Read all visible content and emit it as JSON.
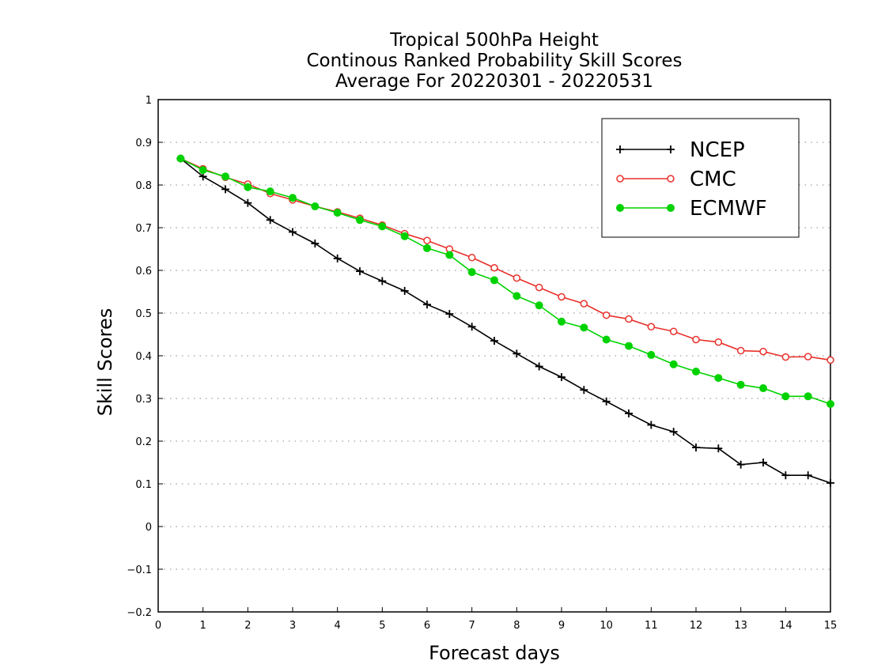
{
  "chart_data": {
    "type": "line",
    "title": "Tropical 500hPa Height",
    "subtitle": [
      "Continous Ranked Probability Skill Scores",
      "Average For 20220301 - 20220531"
    ],
    "xlabel": "Forecast days",
    "ylabel": "Skill Scores",
    "xlim": [
      0,
      15
    ],
    "ylim": [
      -0.2,
      1
    ],
    "xticks": [
      "0",
      "1",
      "2",
      "3",
      "4",
      "5",
      "6",
      "7",
      "8",
      "9",
      "10",
      "11",
      "12",
      "13",
      "14",
      "15"
    ],
    "yticks": [
      "-0.2",
      "-0.1",
      "0",
      "0.1",
      "0.2",
      "0.3",
      "0.4",
      "0.5",
      "0.6",
      "0.7",
      "0.8",
      "0.9",
      "1"
    ],
    "grid": "dotted-horizontal",
    "legend_position": "top-right",
    "x": [
      0.5,
      1,
      1.5,
      2,
      2.5,
      3,
      3.5,
      4,
      4.5,
      5,
      5.5,
      6,
      6.5,
      7,
      7.5,
      8,
      8.5,
      9,
      9.5,
      10,
      10.5,
      11,
      11.5,
      12,
      12.5,
      13,
      13.5,
      14,
      14.5,
      15
    ],
    "series": [
      {
        "name": "NCEP",
        "color": "#000000",
        "marker": "plus",
        "values": [
          0.862,
          0.82,
          0.79,
          0.758,
          0.718,
          0.69,
          0.663,
          0.628,
          0.598,
          0.575,
          0.552,
          0.52,
          0.498,
          0.468,
          0.435,
          0.405,
          0.375,
          0.35,
          0.32,
          0.293,
          0.265,
          0.238,
          0.222,
          0.185,
          0.183,
          0.145,
          0.15,
          0.12,
          0.12,
          0.102
        ]
      },
      {
        "name": "CMC",
        "color": "#e8302a",
        "marker": "open-circle",
        "values": [
          0.862,
          0.838,
          0.818,
          0.802,
          0.78,
          0.765,
          0.75,
          0.737,
          0.722,
          0.706,
          0.686,
          0.67,
          0.65,
          0.63,
          0.606,
          0.582,
          0.56,
          0.538,
          0.522,
          0.495,
          0.486,
          0.468,
          0.457,
          0.438,
          0.432,
          0.412,
          0.41,
          0.397,
          0.398,
          0.39
        ]
      },
      {
        "name": "ECMWF",
        "color": "#00d200",
        "marker": "filled-circle",
        "values": [
          0.862,
          0.835,
          0.82,
          0.795,
          0.785,
          0.77,
          0.75,
          0.735,
          0.718,
          0.703,
          0.68,
          0.652,
          0.636,
          0.596,
          0.577,
          0.54,
          0.518,
          0.48,
          0.466,
          0.438,
          0.423,
          0.402,
          0.38,
          0.363,
          0.348,
          0.332,
          0.324,
          0.305,
          0.305,
          0.287
        ]
      }
    ]
  }
}
